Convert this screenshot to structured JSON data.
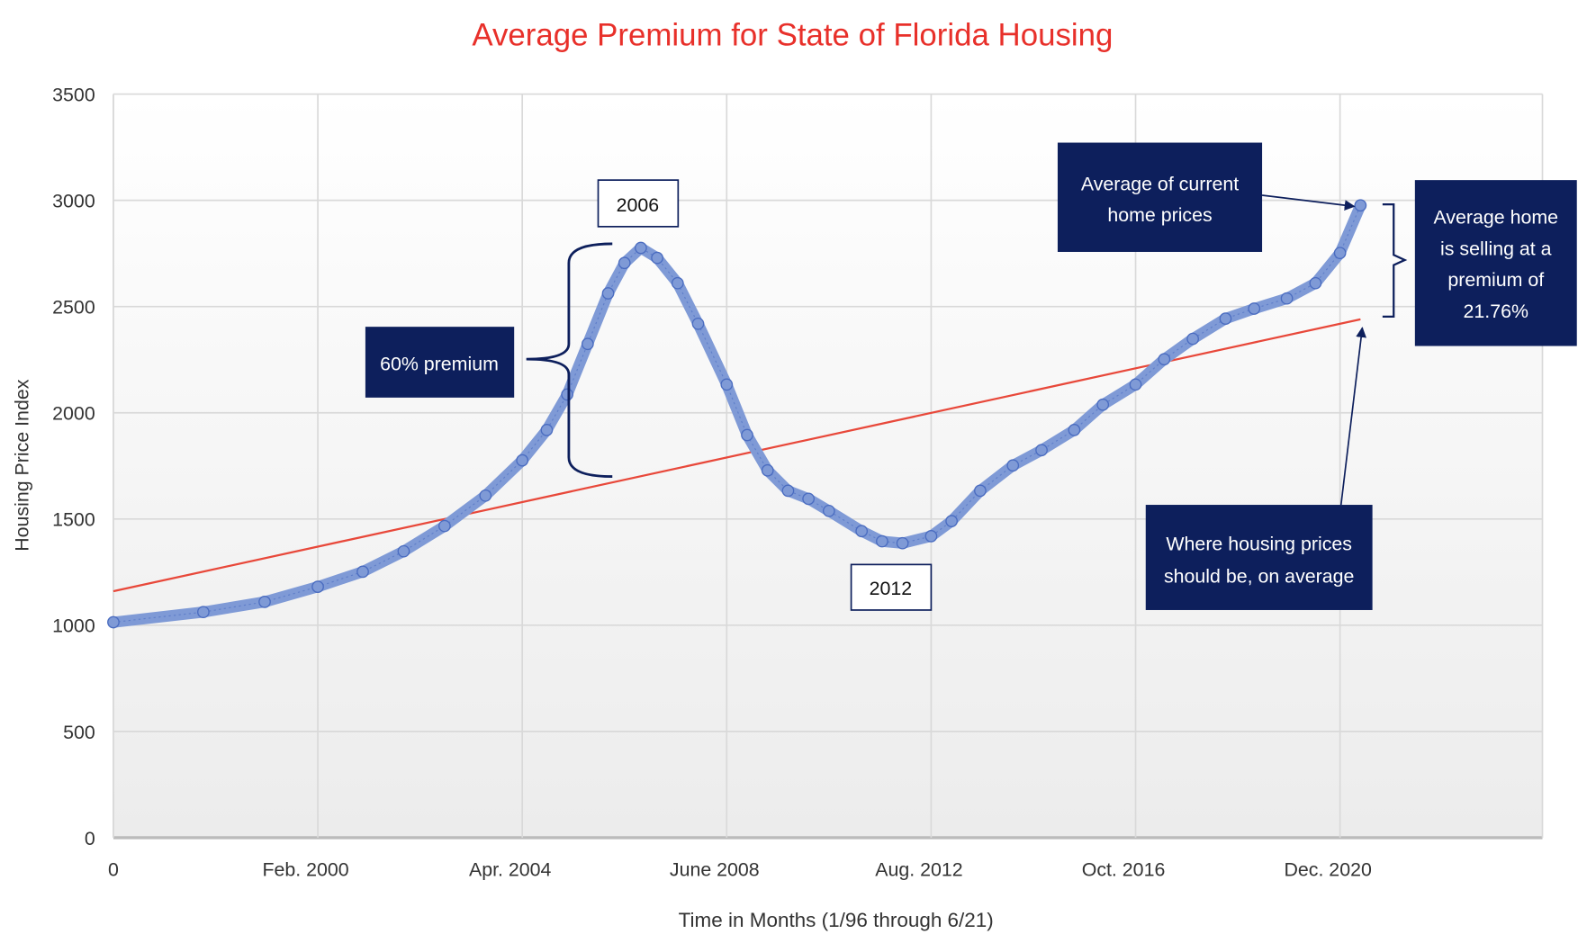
{
  "chart_data": {
    "type": "scatter",
    "title": "Average Premium for State of Florida Housing",
    "xlabel": "Time in Months (1/96 through 6/21)",
    "ylabel": "Housing Price Index",
    "ylim": [
      0,
      3500
    ],
    "yticks": [
      "0",
      "500",
      "1000",
      "1500",
      "2000",
      "2500",
      "3000",
      "3500"
    ],
    "xlim": [
      0,
      350
    ],
    "xtick_positions": [
      0,
      50,
      100,
      150,
      200,
      250,
      300
    ],
    "xticks": [
      "0",
      "Feb. 2000",
      "Apr. 2004",
      "June 2008",
      "Aug. 2012",
      "Oct. 2016",
      "Dec. 2020"
    ],
    "grid": true,
    "series": [
      {
        "color": "#7f9ad6",
        "x": [
          0,
          22,
          37,
          50,
          61,
          71,
          81,
          91,
          100,
          106,
          111,
          116,
          121,
          125,
          129,
          133,
          138,
          143,
          150,
          155,
          160,
          165,
          170,
          175,
          183,
          188,
          193,
          200,
          205,
          212,
          220,
          227,
          235,
          242,
          250,
          257,
          264,
          272,
          279,
          287,
          294,
          300,
          305
        ],
        "y": [
          1014,
          1062,
          1110,
          1181,
          1252,
          1348,
          1467,
          1610,
          1776,
          1919,
          2086,
          2324,
          2562,
          2705,
          2776,
          2729,
          2610,
          2419,
          2133,
          1895,
          1729,
          1633,
          1595,
          1538,
          1443,
          1395,
          1386,
          1419,
          1490,
          1633,
          1752,
          1824,
          1919,
          2038,
          2133,
          2252,
          2348,
          2443,
          2490,
          2538,
          2610,
          2752,
          2976
        ]
      }
    ],
    "trendline": {
      "color": "#e8483a",
      "x": [
        0,
        305
      ],
      "y": [
        1160,
        2440
      ]
    },
    "annotations": {
      "peak_label": "2006",
      "premium_2006": "60% premium",
      "trough_label": "2012",
      "current_avg": [
        "Average of current",
        "home prices"
      ],
      "current_premium": [
        "Average home",
        "is selling at a",
        "premium of",
        "21.76%"
      ],
      "trend_note": [
        "Where housing prices",
        "should be, on average"
      ]
    },
    "colors": {
      "title": "#e8302a",
      "annotation_box": "#0d1f5c"
    }
  }
}
